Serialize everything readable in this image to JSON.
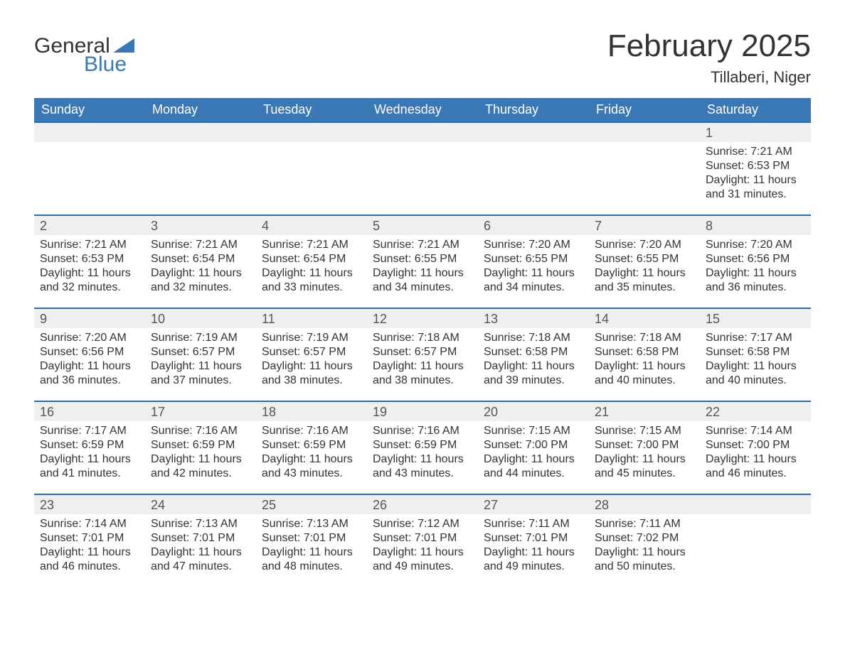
{
  "brand": {
    "word1": "General",
    "word2": "Blue",
    "text_color": "#333333",
    "accent_color": "#3a78b5"
  },
  "title": "February 2025",
  "location": "Tillaberi, Niger",
  "colors": {
    "header_bg": "#3a78b5",
    "header_text": "#ffffff",
    "daynum_bg": "#efefef",
    "daynum_border": "#2f6bb0",
    "body_text": "#333333",
    "background": "#ffffff"
  },
  "typography": {
    "title_fontsize": 44,
    "location_fontsize": 22,
    "weekday_fontsize": 18,
    "daynum_fontsize": 18,
    "body_fontsize": 16,
    "font_family": "Arial"
  },
  "weekdays": [
    "Sunday",
    "Monday",
    "Tuesday",
    "Wednesday",
    "Thursday",
    "Friday",
    "Saturday"
  ],
  "weeks": [
    [
      {
        "empty": true
      },
      {
        "empty": true
      },
      {
        "empty": true
      },
      {
        "empty": true
      },
      {
        "empty": true
      },
      {
        "empty": true
      },
      {
        "day": "1",
        "sunrise": "Sunrise: 7:21 AM",
        "sunset": "Sunset: 6:53 PM",
        "daylight1": "Daylight: 11 hours",
        "daylight2": "and 31 minutes."
      }
    ],
    [
      {
        "day": "2",
        "sunrise": "Sunrise: 7:21 AM",
        "sunset": "Sunset: 6:53 PM",
        "daylight1": "Daylight: 11 hours",
        "daylight2": "and 32 minutes."
      },
      {
        "day": "3",
        "sunrise": "Sunrise: 7:21 AM",
        "sunset": "Sunset: 6:54 PM",
        "daylight1": "Daylight: 11 hours",
        "daylight2": "and 32 minutes."
      },
      {
        "day": "4",
        "sunrise": "Sunrise: 7:21 AM",
        "sunset": "Sunset: 6:54 PM",
        "daylight1": "Daylight: 11 hours",
        "daylight2": "and 33 minutes."
      },
      {
        "day": "5",
        "sunrise": "Sunrise: 7:21 AM",
        "sunset": "Sunset: 6:55 PM",
        "daylight1": "Daylight: 11 hours",
        "daylight2": "and 34 minutes."
      },
      {
        "day": "6",
        "sunrise": "Sunrise: 7:20 AM",
        "sunset": "Sunset: 6:55 PM",
        "daylight1": "Daylight: 11 hours",
        "daylight2": "and 34 minutes."
      },
      {
        "day": "7",
        "sunrise": "Sunrise: 7:20 AM",
        "sunset": "Sunset: 6:55 PM",
        "daylight1": "Daylight: 11 hours",
        "daylight2": "and 35 minutes."
      },
      {
        "day": "8",
        "sunrise": "Sunrise: 7:20 AM",
        "sunset": "Sunset: 6:56 PM",
        "daylight1": "Daylight: 11 hours",
        "daylight2": "and 36 minutes."
      }
    ],
    [
      {
        "day": "9",
        "sunrise": "Sunrise: 7:20 AM",
        "sunset": "Sunset: 6:56 PM",
        "daylight1": "Daylight: 11 hours",
        "daylight2": "and 36 minutes."
      },
      {
        "day": "10",
        "sunrise": "Sunrise: 7:19 AM",
        "sunset": "Sunset: 6:57 PM",
        "daylight1": "Daylight: 11 hours",
        "daylight2": "and 37 minutes."
      },
      {
        "day": "11",
        "sunrise": "Sunrise: 7:19 AM",
        "sunset": "Sunset: 6:57 PM",
        "daylight1": "Daylight: 11 hours",
        "daylight2": "and 38 minutes."
      },
      {
        "day": "12",
        "sunrise": "Sunrise: 7:18 AM",
        "sunset": "Sunset: 6:57 PM",
        "daylight1": "Daylight: 11 hours",
        "daylight2": "and 38 minutes."
      },
      {
        "day": "13",
        "sunrise": "Sunrise: 7:18 AM",
        "sunset": "Sunset: 6:58 PM",
        "daylight1": "Daylight: 11 hours",
        "daylight2": "and 39 minutes."
      },
      {
        "day": "14",
        "sunrise": "Sunrise: 7:18 AM",
        "sunset": "Sunset: 6:58 PM",
        "daylight1": "Daylight: 11 hours",
        "daylight2": "and 40 minutes."
      },
      {
        "day": "15",
        "sunrise": "Sunrise: 7:17 AM",
        "sunset": "Sunset: 6:58 PM",
        "daylight1": "Daylight: 11 hours",
        "daylight2": "and 40 minutes."
      }
    ],
    [
      {
        "day": "16",
        "sunrise": "Sunrise: 7:17 AM",
        "sunset": "Sunset: 6:59 PM",
        "daylight1": "Daylight: 11 hours",
        "daylight2": "and 41 minutes."
      },
      {
        "day": "17",
        "sunrise": "Sunrise: 7:16 AM",
        "sunset": "Sunset: 6:59 PM",
        "daylight1": "Daylight: 11 hours",
        "daylight2": "and 42 minutes."
      },
      {
        "day": "18",
        "sunrise": "Sunrise: 7:16 AM",
        "sunset": "Sunset: 6:59 PM",
        "daylight1": "Daylight: 11 hours",
        "daylight2": "and 43 minutes."
      },
      {
        "day": "19",
        "sunrise": "Sunrise: 7:16 AM",
        "sunset": "Sunset: 6:59 PM",
        "daylight1": "Daylight: 11 hours",
        "daylight2": "and 43 minutes."
      },
      {
        "day": "20",
        "sunrise": "Sunrise: 7:15 AM",
        "sunset": "Sunset: 7:00 PM",
        "daylight1": "Daylight: 11 hours",
        "daylight2": "and 44 minutes."
      },
      {
        "day": "21",
        "sunrise": "Sunrise: 7:15 AM",
        "sunset": "Sunset: 7:00 PM",
        "daylight1": "Daylight: 11 hours",
        "daylight2": "and 45 minutes."
      },
      {
        "day": "22",
        "sunrise": "Sunrise: 7:14 AM",
        "sunset": "Sunset: 7:00 PM",
        "daylight1": "Daylight: 11 hours",
        "daylight2": "and 46 minutes."
      }
    ],
    [
      {
        "day": "23",
        "sunrise": "Sunrise: 7:14 AM",
        "sunset": "Sunset: 7:01 PM",
        "daylight1": "Daylight: 11 hours",
        "daylight2": "and 46 minutes."
      },
      {
        "day": "24",
        "sunrise": "Sunrise: 7:13 AM",
        "sunset": "Sunset: 7:01 PM",
        "daylight1": "Daylight: 11 hours",
        "daylight2": "and 47 minutes."
      },
      {
        "day": "25",
        "sunrise": "Sunrise: 7:13 AM",
        "sunset": "Sunset: 7:01 PM",
        "daylight1": "Daylight: 11 hours",
        "daylight2": "and 48 minutes."
      },
      {
        "day": "26",
        "sunrise": "Sunrise: 7:12 AM",
        "sunset": "Sunset: 7:01 PM",
        "daylight1": "Daylight: 11 hours",
        "daylight2": "and 49 minutes."
      },
      {
        "day": "27",
        "sunrise": "Sunrise: 7:11 AM",
        "sunset": "Sunset: 7:01 PM",
        "daylight1": "Daylight: 11 hours",
        "daylight2": "and 49 minutes."
      },
      {
        "day": "28",
        "sunrise": "Sunrise: 7:11 AM",
        "sunset": "Sunset: 7:02 PM",
        "daylight1": "Daylight: 11 hours",
        "daylight2": "and 50 minutes."
      },
      {
        "empty": true
      }
    ]
  ]
}
